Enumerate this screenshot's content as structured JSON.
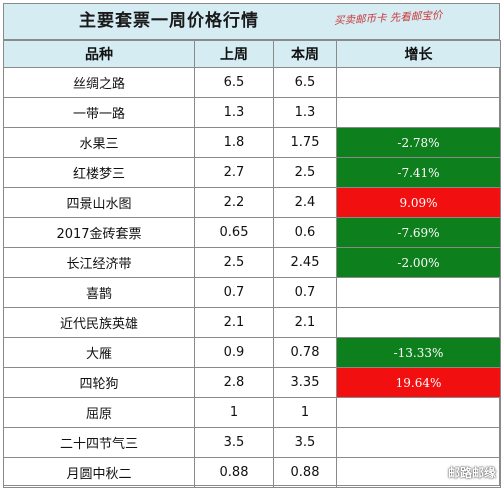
{
  "title": "主要套票一周价格行情",
  "watermark": "买卖邮币卡 先看邮宝价",
  "headers": {
    "name": "品种",
    "last": "上周",
    "this": "本周",
    "change": "增长"
  },
  "rows": [
    {
      "name": "丝绸之路",
      "last": "6.5",
      "this": "6.5",
      "change": ""
    },
    {
      "name": "一带一路",
      "last": "1.3",
      "this": "1.3",
      "change": ""
    },
    {
      "name": "水果三",
      "last": "1.8",
      "this": "1.75",
      "change": "-2.78%"
    },
    {
      "name": "红楼梦三",
      "last": "2.7",
      "this": "2.5",
      "change": "-7.41%"
    },
    {
      "name": "四景山水图",
      "last": "2.2",
      "this": "2.4",
      "change": "9.09%"
    },
    {
      "name": "2017金砖套票",
      "last": "0.65",
      "this": "0.6",
      "change": "-7.69%"
    },
    {
      "name": "长江经济带",
      "last": "2.5",
      "this": "2.45",
      "change": "-2.00%"
    },
    {
      "name": "喜鹊",
      "last": "0.7",
      "this": "0.7",
      "change": ""
    },
    {
      "name": "近代民族英雄",
      "last": "2.1",
      "this": "2.1",
      "change": ""
    },
    {
      "name": "大雁",
      "last": "0.9",
      "this": "0.78",
      "change": "-13.33%"
    },
    {
      "name": "四轮狗",
      "last": "2.8",
      "this": "3.35",
      "change": "19.64%"
    },
    {
      "name": "屈原",
      "last": "1",
      "this": "1",
      "change": ""
    },
    {
      "name": "二十四节气三",
      "last": "3.5",
      "this": "3.5",
      "change": ""
    },
    {
      "name": "月圆中秋二",
      "last": "0.88",
      "this": "0.88",
      "change": ""
    }
  ],
  "colors": {
    "header_bg": "#d5ecf3",
    "decrease": "#0d7f1c",
    "increase": "#f20f0f"
  },
  "brand": "邮路邮缘"
}
